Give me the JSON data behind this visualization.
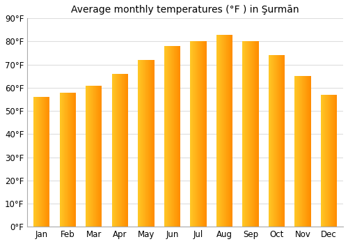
{
  "title": "Average monthly temperatures (°F ) in Şurmān",
  "months": [
    "Jan",
    "Feb",
    "Mar",
    "Apr",
    "May",
    "Jun",
    "Jul",
    "Aug",
    "Sep",
    "Oct",
    "Nov",
    "Dec"
  ],
  "values": [
    56,
    58,
    61,
    66,
    72,
    78,
    80,
    83,
    80,
    74,
    65,
    57
  ],
  "ylim": [
    0,
    90
  ],
  "yticks": [
    0,
    10,
    20,
    30,
    40,
    50,
    60,
    70,
    80,
    90
  ],
  "ytick_labels": [
    "0°F",
    "10°F",
    "20°F",
    "30°F",
    "40°F",
    "50°F",
    "60°F",
    "70°F",
    "80°F",
    "90°F"
  ],
  "background_color": "#ffffff",
  "grid_color": "#dddddd",
  "bar_color_left": "#FFB300",
  "bar_color_right": "#FF8C00",
  "title_fontsize": 10,
  "tick_fontsize": 8.5
}
